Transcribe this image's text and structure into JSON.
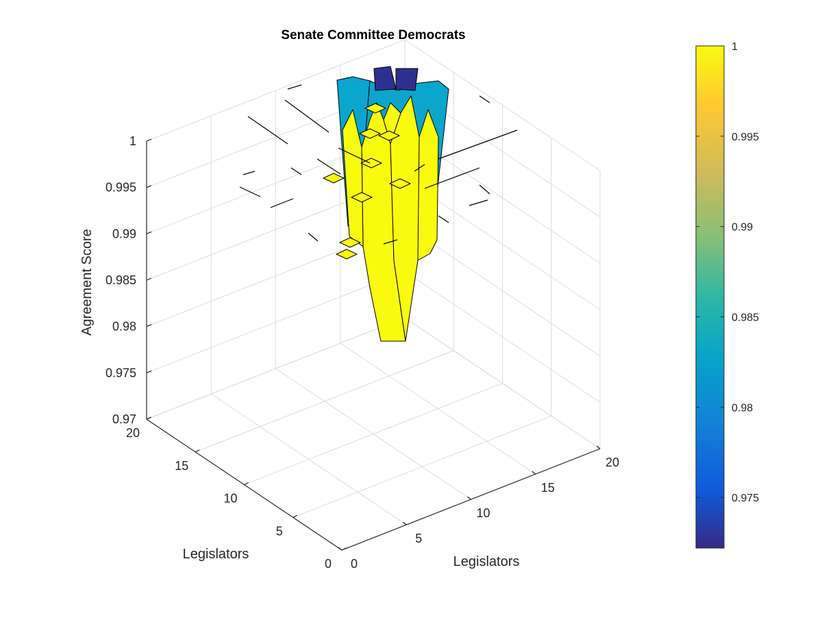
{
  "chart_data": {
    "type": "surface3d",
    "title": "Senate Committee Democrats",
    "xlabel": "Legislators",
    "ylabel": "Legislators",
    "zlabel": "Agreement Score",
    "xlim": [
      0,
      20
    ],
    "ylim": [
      0,
      20
    ],
    "zlim": [
      0.97,
      1
    ],
    "xticks": [
      "0",
      "5",
      "10",
      "15",
      "20"
    ],
    "yticks": [
      "0",
      "5",
      "10",
      "15",
      "20"
    ],
    "zticks": [
      "0.97",
      "0.975",
      "0.98",
      "0.985",
      "0.99",
      "0.995",
      "1"
    ],
    "grid": true,
    "view": "3d isometric, azimuth -45",
    "colormap": "parula",
    "colorbar": {
      "range": [
        0.9722,
        1
      ],
      "ticks": [
        "0.975",
        "0.98",
        "0.985",
        "0.99",
        "0.995",
        "1"
      ],
      "placement": "right"
    },
    "surface": {
      "description": "Spiky surface concentrated near legislators 1-5 on both axes; most visible cells at score 1 (yellow) or about 0.983 (teal), minimum about 0.9722 (dark blue) near the back corner; lowest ridge drops to about 0.979 near the front.",
      "min_value": 0.9722,
      "max_value": 1,
      "peak_values": [
        {
          "x": 1,
          "y": 1,
          "z": 1
        },
        {
          "x": 2,
          "y": 2,
          "z": 1
        },
        {
          "x": 3,
          "y": 3,
          "z": 1
        },
        {
          "x": 4,
          "y": 4,
          "z": 1
        },
        {
          "x": 5,
          "y": 5,
          "z": 1
        }
      ],
      "background_level": 0.983,
      "trough": 0.979
    }
  }
}
